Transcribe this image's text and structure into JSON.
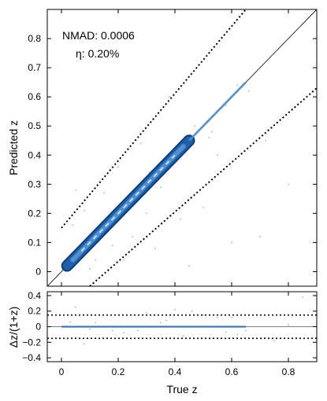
{
  "chart_data": [
    {
      "type": "scatter",
      "panel": "top",
      "xlabel": "",
      "ylabel": "Predicted z",
      "xlim": [
        -0.05,
        0.9
      ],
      "ylim": [
        -0.05,
        0.9
      ],
      "yticks": [
        0,
        0.1,
        0.2,
        0.3,
        0.4,
        0.5,
        0.6,
        0.7,
        0.8
      ],
      "ytick_labels": [
        "0",
        "0.1",
        "0.2",
        "0.3",
        "0.4",
        "0.5",
        "0.6",
        "0.7",
        "0.8"
      ],
      "annotations": [
        "NMAD: 0.0006",
        "η: 0.20%"
      ],
      "lines": [
        {
          "name": "one-to-one",
          "style": "solid",
          "x": [
            -0.05,
            0.9
          ],
          "y": [
            -0.05,
            0.9
          ]
        },
        {
          "name": "outlier-upper",
          "style": "dotted",
          "x": [
            0.0,
            0.65
          ],
          "y": [
            0.15,
            0.9
          ]
        },
        {
          "name": "outlier-lower",
          "style": "dotted",
          "x": [
            0.1,
            0.9
          ],
          "y": [
            -0.05,
            0.63
          ]
        }
      ],
      "density_band": {
        "x_start": 0.02,
        "x_end": 0.65,
        "dense_end": 0.45
      },
      "points": [
        [
          0.05,
          0.28
        ],
        [
          0.08,
          0.21
        ],
        [
          0.12,
          0.04
        ],
        [
          0.2,
          0.36
        ],
        [
          0.25,
          0.12
        ],
        [
          0.3,
          0.2
        ],
        [
          0.33,
          0.08
        ],
        [
          0.38,
          0.6
        ],
        [
          0.42,
          0.18
        ],
        [
          0.5,
          0.22
        ],
        [
          0.55,
          0.4
        ],
        [
          0.6,
          0.1
        ],
        [
          0.66,
          0.62
        ],
        [
          0.72,
          0.45
        ],
        [
          0.8,
          0.3
        ],
        [
          0.35,
          0.29
        ],
        [
          0.47,
          0.5
        ],
        [
          0.58,
          0.57
        ],
        [
          0.62,
          0.64
        ],
        [
          0.22,
          0.04
        ],
        [
          0.15,
          0.27
        ],
        [
          0.1,
          0.01
        ],
        [
          0.28,
          0.44
        ],
        [
          0.53,
          0.48
        ],
        [
          0.7,
          0.12
        ],
        [
          0.45,
          0.02
        ],
        [
          0.04,
          0.16
        ],
        [
          0.18,
          0.09
        ],
        [
          0.31,
          0.34
        ],
        [
          0.52,
          0.46
        ]
      ]
    },
    {
      "type": "scatter",
      "panel": "bottom",
      "xlabel": "True z",
      "ylabel": "Δz/(1+z)",
      "xlim": [
        -0.05,
        0.9
      ],
      "ylim": [
        -0.45,
        0.45
      ],
      "xticks": [
        0,
        0.2,
        0.4,
        0.6,
        0.8
      ],
      "xtick_labels": [
        "0",
        "0.2",
        "0.4",
        "0.6",
        "0.8"
      ],
      "yticks": [
        -0.4,
        -0.2,
        0,
        0.2,
        0.4
      ],
      "ytick_labels": [
        "−0.4",
        "−0.2",
        "0",
        "0.2",
        "0.4"
      ],
      "lines": [
        {
          "name": "zero",
          "style": "solid",
          "y": 0
        },
        {
          "name": "upper-threshold",
          "style": "dotted",
          "y": 0.15
        },
        {
          "name": "lower-threshold",
          "style": "dotted",
          "y": -0.15
        }
      ],
      "band": {
        "x_start": 0.0,
        "x_end": 0.65,
        "y": 0
      },
      "points": [
        [
          0.02,
          -0.16
        ],
        [
          0.05,
          0.25
        ],
        [
          0.08,
          -0.22
        ],
        [
          0.12,
          0.05
        ],
        [
          0.18,
          -0.05
        ],
        [
          0.22,
          -0.08
        ],
        [
          0.3,
          0.18
        ],
        [
          0.35,
          0.05
        ],
        [
          0.4,
          0.22
        ],
        [
          0.43,
          -0.12
        ],
        [
          0.5,
          0.15
        ],
        [
          0.55,
          0.12
        ],
        [
          0.58,
          -0.07
        ],
        [
          0.62,
          -0.1
        ],
        [
          0.65,
          -0.05
        ],
        [
          0.75,
          -0.18
        ],
        [
          0.8,
          0.02
        ],
        [
          0.85,
          0.38
        ],
        [
          0.6,
          0.12
        ],
        [
          0.46,
          0.2
        ],
        [
          0.1,
          -0.03
        ],
        [
          0.03,
          0.06
        ],
        [
          0.27,
          -0.05
        ],
        [
          0.37,
          0.08
        ]
      ]
    }
  ]
}
